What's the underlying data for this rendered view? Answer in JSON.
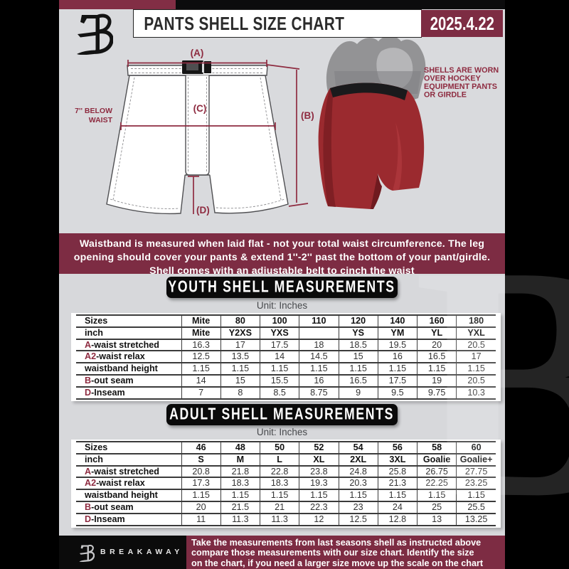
{
  "header": {
    "title": "PANTS SHELL SIZE CHART",
    "date": "2025.4.22"
  },
  "diagram": {
    "measure_a": "(A)",
    "measure_b": "(B)",
    "measure_c": "(C)",
    "measure_d": "(D)",
    "waist_note": [
      "7'' BELOW",
      "WAIST"
    ],
    "photo_note": [
      "SHELLS ARE WORN",
      "OVER HOCKEY",
      "EQUIPMENT PANTS",
      "OR GIRDLE"
    ]
  },
  "info_banner": {
    "lines": [
      "Waistband is measured when laid flat - not your total waist circumference. The leg",
      "opening should cover your pants & extend 1''-2'' past the bottom of your pant/girdle.",
      "Shell comes with an adjustable belt to cinch the waist"
    ]
  },
  "youth": {
    "banner": "YOUTH SHELL MEASUREMENTS",
    "unit": "Unit: Inches",
    "rows": [
      {
        "header": true,
        "prefix": "",
        "label": "Sizes",
        "values": [
          "Mite",
          "80",
          "100",
          "110",
          "120",
          "140",
          "160",
          "180"
        ]
      },
      {
        "header": true,
        "prefix": "",
        "label": "inch",
        "values": [
          "Mite",
          "Y2XS",
          "YXS",
          "",
          "YS",
          "YM",
          "YL",
          "YXL"
        ]
      },
      {
        "prefix": "A",
        "label": "-waist stretched",
        "values": [
          "16.3",
          "17",
          "17.5",
          "18",
          "18.5",
          "19.5",
          "20",
          "20.5"
        ]
      },
      {
        "prefix": "A2",
        "label": "-waist relax",
        "values": [
          "12.5",
          "13.5",
          "14",
          "14.5",
          "15",
          "16",
          "16.5",
          "17"
        ]
      },
      {
        "prefix": "",
        "label": "waistband height",
        "values": [
          "1.15",
          "1.15",
          "1.15",
          "1.15",
          "1.15",
          "1.15",
          "1.15",
          "1.15"
        ]
      },
      {
        "prefix": "B",
        "label": "-out seam",
        "values": [
          "14",
          "15",
          "15.5",
          "16",
          "16.5",
          "17.5",
          "19",
          "20.5"
        ]
      },
      {
        "prefix": "D",
        "label": "-Inseam",
        "values": [
          "7",
          "8",
          "8.5",
          "8.75",
          "9",
          "9.5",
          "9.75",
          "10.3"
        ]
      }
    ]
  },
  "adult": {
    "banner": "ADULT SHELL MEASUREMENTS",
    "unit": "Unit: Inches",
    "rows": [
      {
        "header": true,
        "prefix": "",
        "label": "Sizes",
        "values": [
          "46",
          "48",
          "50",
          "52",
          "54",
          "56",
          "58",
          "60"
        ]
      },
      {
        "header": true,
        "prefix": "",
        "label": "inch",
        "values": [
          "S",
          "M",
          "L",
          "XL",
          "2XL",
          "3XL",
          "Goalie",
          "Goalie+"
        ]
      },
      {
        "prefix": "A",
        "label": "-waist stretched",
        "values": [
          "20.8",
          "21.8",
          "22.8",
          "23.8",
          "24.8",
          "25.8",
          "26.75",
          "27.75"
        ]
      },
      {
        "prefix": "A2",
        "label": "-waist relax",
        "values": [
          "17.3",
          "18.3",
          "18.3",
          "19.3",
          "20.3",
          "21.3",
          "22.25",
          "23.25"
        ]
      },
      {
        "prefix": "",
        "label": "waistband height",
        "values": [
          "1.15",
          "1.15",
          "1.15",
          "1.15",
          "1.15",
          "1.15",
          "1.15",
          "1.15"
        ]
      },
      {
        "prefix": "B",
        "label": "-out seam",
        "values": [
          "20",
          "21.5",
          "21",
          "22.3",
          "23",
          "24",
          "25",
          "25.5"
        ]
      },
      {
        "prefix": "D",
        "label": "-Inseam",
        "values": [
          "11",
          "11.3",
          "11.3",
          "12",
          "12.5",
          "12.8",
          "13",
          "13.25"
        ]
      }
    ]
  },
  "footer": {
    "brand": "BREAKAWAY",
    "lines": [
      "Take the measurements from last seasons shell as instructed above",
      "compare those measurements  with our size chart. Identify the size",
      "on the chart, if you need a larger size move up the scale on the chart"
    ]
  },
  "watermark": "B",
  "colors": {
    "maroon": "#7d2c43",
    "accent_maroon": "#8e2b40",
    "header_black": "#0c0c0d",
    "section_gray": "#d9dadd",
    "shell_red": "#9b2a2f"
  }
}
